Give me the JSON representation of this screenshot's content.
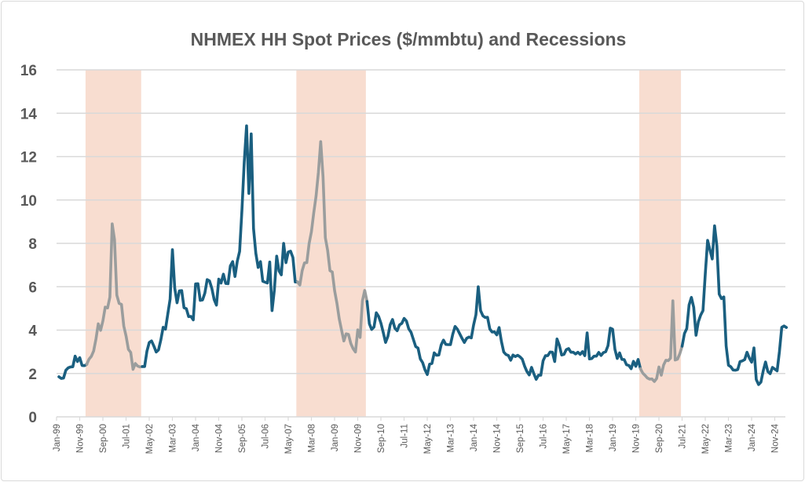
{
  "chart_data": {
    "type": "line",
    "title": "NHMEX HH Spot Prices ($/mmbtu) and Recessions",
    "xlabel": "",
    "ylabel": "",
    "ylim": [
      0,
      16
    ],
    "yticks": [
      0,
      2,
      4,
      6,
      8,
      10,
      12,
      14,
      16
    ],
    "grid": true,
    "legend": "none",
    "x_tick_labels": [
      "Jan-99",
      "Nov-99",
      "Sep-00",
      "Jul-01",
      "May-02",
      "Mar-03",
      "Jan-04",
      "Nov-04",
      "Sep-05",
      "Jul-06",
      "May-07",
      "Mar-08",
      "Jan-09",
      "Nov-09",
      "Sep-10",
      "Jul-11",
      "May-12",
      "Mar-13",
      "Jan-14",
      "Nov-14",
      "Sep-15",
      "Jul-16",
      "May-17",
      "Mar-18",
      "Jan-19",
      "Nov-19",
      "Sep-20",
      "Jul-21",
      "May-22",
      "Mar-23",
      "Jan-24",
      "Nov-24"
    ],
    "frequency": "monthly",
    "colors": {
      "line": "#1a5f80",
      "line_in_recession": "#9a9d9d",
      "recession_band": "#f8ddd0",
      "grid": "#d9d9d9",
      "text": "#595959"
    },
    "recessions": [
      {
        "start": "Jan-00",
        "end": "Dec-01"
      },
      {
        "start": "Aug-07",
        "end": "Jan-10"
      },
      {
        "start": "Dec-19",
        "end": "May-21"
      }
    ],
    "values_by_year": {
      "1999": [
        1.85,
        1.77,
        1.79,
        2.15,
        2.26,
        2.3,
        2.31,
        2.8,
        2.55,
        2.73,
        2.37,
        2.36
      ],
      "2000": [
        2.42,
        2.66,
        2.79,
        3.04,
        3.59,
        4.29,
        3.99,
        4.43,
        5.06,
        5.02,
        5.52,
        8.9
      ],
      "2001": [
        8.17,
        5.61,
        5.23,
        5.19,
        4.19,
        3.72,
        3.11,
        2.97,
        2.19,
        2.46,
        2.34,
        2.3
      ],
      "2002": [
        2.32,
        2.32,
        3.03,
        3.43,
        3.5,
        3.26,
        2.99,
        3.09,
        3.55,
        4.13,
        4.04,
        4.74
      ],
      "2003": [
        5.43,
        7.71,
        5.93,
        5.26,
        5.81,
        5.82,
        5.03,
        4.99,
        4.62,
        4.63,
        4.47,
        6.13
      ],
      "2004": [
        6.14,
        5.37,
        5.39,
        5.71,
        6.33,
        6.27,
        5.93,
        5.41,
        5.15,
        6.35,
        6.17,
        6.58
      ],
      "2005": [
        6.15,
        6.14,
        6.96,
        7.16,
        6.47,
        7.18,
        7.63,
        9.53,
        11.75,
        13.42,
        10.3,
        13.05
      ],
      "2006": [
        8.69,
        7.54,
        6.89,
        7.16,
        6.25,
        6.21,
        6.17,
        7.14,
        4.9,
        5.85,
        7.41,
        6.73
      ],
      "2007": [
        6.55,
        8.0,
        7.11,
        7.6,
        7.64,
        7.35,
        6.22,
        6.22,
        6.08,
        6.74,
        7.1,
        7.11
      ],
      "2008": [
        7.99,
        8.54,
        9.41,
        10.18,
        11.27,
        12.69,
        11.09,
        8.26,
        7.67,
        6.74,
        6.68,
        5.82
      ],
      "2009": [
        5.24,
        4.52,
        4.0,
        3.5,
        3.83,
        3.8,
        3.38,
        3.14,
        2.99,
        4.01,
        3.66,
        5.35
      ],
      "2010": [
        5.83,
        5.32,
        4.29,
        4.03,
        4.14,
        4.8,
        4.63,
        4.32,
        3.89,
        3.43,
        3.71,
        4.25
      ],
      "2011": [
        4.49,
        4.09,
        3.97,
        4.24,
        4.31,
        4.54,
        4.42,
        4.06,
        3.9,
        3.57,
        3.24,
        3.17
      ],
      "2012": [
        2.67,
        2.5,
        2.17,
        1.95,
        2.43,
        2.46,
        2.95,
        2.84,
        2.85,
        3.32,
        3.54,
        3.34
      ],
      "2013": [
        3.33,
        3.33,
        3.81,
        4.17,
        4.04,
        3.83,
        3.62,
        3.43,
        3.62,
        3.68,
        3.64,
        4.24
      ],
      "2014": [
        4.71,
        6.0,
        4.9,
        4.66,
        4.58,
        4.59,
        4.05,
        3.91,
        3.92,
        3.78,
        4.12,
        3.48
      ],
      "2015": [
        2.99,
        2.87,
        2.83,
        2.61,
        2.85,
        2.78,
        2.84,
        2.77,
        2.66,
        2.34,
        2.09,
        1.93
      ],
      "2016": [
        2.28,
        1.99,
        1.73,
        1.92,
        1.92,
        2.59,
        2.82,
        2.82,
        2.99,
        2.98,
        2.55,
        3.59
      ],
      "2017": [
        3.3,
        2.85,
        2.88,
        3.1,
        3.15,
        2.98,
        2.98,
        2.9,
        2.98,
        2.88,
        3.01,
        2.82
      ],
      "2018": [
        3.87,
        2.67,
        2.69,
        2.8,
        2.8,
        2.97,
        2.83,
        2.96,
        3.0,
        3.28,
        4.09,
        4.04
      ],
      "2019": [
        3.11,
        2.69,
        2.95,
        2.65,
        2.64,
        2.4,
        2.37,
        2.22,
        2.56,
        2.33,
        2.65,
        2.22
      ],
      "2020": [
        2.02,
        1.91,
        1.79,
        1.74,
        1.75,
        1.63,
        1.77,
        2.3,
        1.92,
        2.39,
        2.61,
        2.59
      ],
      "2021": [
        2.71,
        5.35,
        2.62,
        2.66,
        2.91,
        3.26,
        3.84,
        4.07,
        5.16,
        5.51,
        5.05,
        3.76
      ],
      "2022": [
        4.38,
        4.69,
        4.9,
        6.6,
        8.14,
        7.7,
        7.28,
        8.81,
        7.88,
        5.66,
        5.45,
        5.53
      ],
      "2023": [
        3.27,
        2.38,
        2.31,
        2.16,
        2.15,
        2.18,
        2.55,
        2.58,
        2.64,
        2.98,
        2.71,
        2.52
      ],
      "2024": [
        3.18,
        1.72,
        1.49,
        1.6,
        2.12,
        2.53,
        2.09,
        1.99,
        2.28,
        2.2,
        2.12,
        3.01
      ],
      "2025": [
        4.13,
        4.19,
        4.12
      ]
    }
  }
}
